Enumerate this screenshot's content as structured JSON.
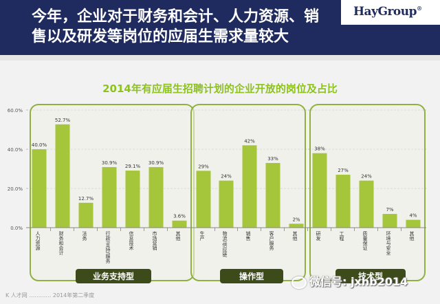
{
  "header": {
    "title": "今年，企业对于财务和会计、人力资源、销售以及研发等岗位的应届生需求量较大",
    "logo_text": "HayGroup",
    "logo_mark": "®"
  },
  "footer": {
    "watermark": "微信号: jxhb2014",
    "source": "K 人才网 ………… 2014年第二季度"
  },
  "colors": {
    "header_bg": "#1f2a5e",
    "bar": "#a5c53a",
    "title": "#8dc21f",
    "group_bg": "#f0f0e8",
    "group_border": "#90b040",
    "group_label_bg": "#3d4a1a"
  },
  "chart_data": {
    "type": "bar",
    "title": "2014年有应届生招聘计划的企业开放的岗位及占比",
    "ylim": [
      0,
      60
    ],
    "yticks": [
      "0.0%",
      "20.0%",
      "40.0%",
      "60.0%"
    ],
    "grid": true,
    "categories": [
      "人力资源",
      "财务和会计",
      "法务",
      "行政/支持/服务",
      "信息技术",
      "市场营销",
      "其他",
      "生产",
      "物流/供应链",
      "销售",
      "客户服务",
      "其他",
      "研发",
      "工程",
      "质量保证",
      "环境与安全",
      "其他"
    ],
    "values": [
      40.0,
      52.7,
      12.7,
      30.9,
      29.1,
      30.9,
      3.6,
      29,
      24,
      42,
      33,
      2,
      38,
      27,
      24,
      7,
      4
    ],
    "value_labels": [
      "40.0%",
      "52.7%",
      "12.7%",
      "30.9%",
      "29.1%",
      "30.9%",
      "3.6%",
      "29%",
      "24%",
      "42%",
      "33%",
      "2%",
      "38%",
      "27%",
      "24%",
      "7%",
      "4%"
    ],
    "groups": [
      {
        "name": "业务支持型",
        "start": 0,
        "end": 6
      },
      {
        "name": "操作型",
        "start": 7,
        "end": 11
      },
      {
        "name": "技术型",
        "start": 12,
        "end": 16
      }
    ]
  }
}
